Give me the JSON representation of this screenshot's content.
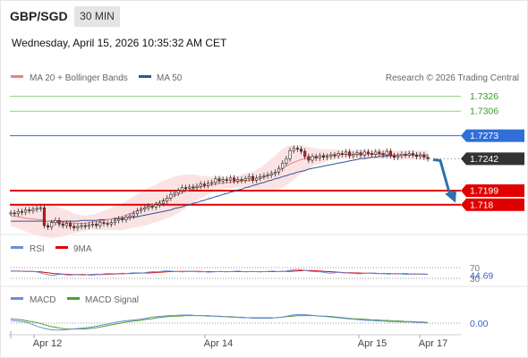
{
  "header": {
    "symbol": "GBP/SGD",
    "timeframe": "30 MIN",
    "datetime": "Wednesday, April 15, 2026 10:35:32 AM CET"
  },
  "legend": {
    "ma20": "MA 20 + Bollinger Bands",
    "ma50": "MA 50",
    "copyright": "Research © 2026 Trading Central"
  },
  "colors": {
    "ma20": "#f08080",
    "ma50": "#2f5597",
    "resistance": "#8fd17a",
    "pivot": "#2f6fd6",
    "support": "#e00000",
    "bull": "#2e9c3a",
    "bear": "#d62020",
    "rsi": "#6a8fd8",
    "rsi_ma": "#e00000",
    "macd": "#6a8fd8",
    "macd_signal": "#4aa02c"
  },
  "chart_data": [
    {
      "type": "candlestick",
      "title": "GBP/SGD",
      "ylim": [
        1.714,
        1.734
      ],
      "x_ticks": [
        "Apr 12",
        "Apr 14",
        "Apr 15",
        "Apr 17"
      ],
      "levels": [
        {
          "value": 1.7326,
          "label": "1.7326",
          "kind": "resistance"
        },
        {
          "value": 1.7306,
          "label": "1.7306",
          "kind": "resistance"
        },
        {
          "value": 1.7273,
          "label": "1.7273",
          "kind": "pivot"
        },
        {
          "value": 1.7242,
          "label": "1.7242",
          "kind": "last"
        },
        {
          "value": 1.7199,
          "label": "1.7199",
          "kind": "support"
        },
        {
          "value": 1.718,
          "label": "1.718",
          "kind": "support"
        }
      ],
      "closes": [
        1.7169,
        1.7168,
        1.7171,
        1.717,
        1.7173,
        1.7172,
        1.7174,
        1.7175,
        1.7176,
        1.7152,
        1.715,
        1.7156,
        1.7159,
        1.7154,
        1.7152,
        1.7155,
        1.7151,
        1.7149,
        1.7151,
        1.7152,
        1.7151,
        1.7153,
        1.7154,
        1.7152,
        1.7156,
        1.7155,
        1.7154,
        1.7156,
        1.7159,
        1.7161,
        1.716,
        1.7163,
        1.7165,
        1.7168,
        1.7172,
        1.7174,
        1.7176,
        1.7178,
        1.7177,
        1.718,
        1.7182,
        1.7185,
        1.7189,
        1.7194,
        1.7196,
        1.7199,
        1.7203,
        1.7202,
        1.7204,
        1.7203,
        1.7205,
        1.7208,
        1.7206,
        1.7209,
        1.721,
        1.7215,
        1.7212,
        1.7214,
        1.7213,
        1.7216,
        1.7212,
        1.7214,
        1.7213,
        1.7215,
        1.7218,
        1.7213,
        1.7216,
        1.7218,
        1.7219,
        1.722,
        1.7222,
        1.7224,
        1.7229,
        1.7236,
        1.7242,
        1.7253,
        1.7256,
        1.7255,
        1.7252,
        1.7245,
        1.724,
        1.7245,
        1.7243,
        1.7246,
        1.7244,
        1.7245,
        1.7247,
        1.7246,
        1.7249,
        1.7248,
        1.7251,
        1.7246,
        1.7248,
        1.725,
        1.7247,
        1.7251,
        1.7249,
        1.7248,
        1.7251,
        1.7249,
        1.7247,
        1.7252,
        1.7246,
        1.7244,
        1.7246,
        1.7248,
        1.7247,
        1.7249,
        1.7247,
        1.7245,
        1.7247,
        1.7244,
        1.7242
      ],
      "ma20": [
        1.7165,
        1.7165,
        1.7164,
        1.7163,
        1.7162,
        1.7161,
        1.7161,
        1.716,
        1.716,
        1.7159,
        1.7158,
        1.7157,
        1.7157,
        1.7156,
        1.7156,
        1.7156,
        1.7156,
        1.7155,
        1.7155,
        1.7155,
        1.7155,
        1.7156,
        1.7157,
        1.7157,
        1.7158,
        1.7159,
        1.716,
        1.7161,
        1.7162,
        1.7163,
        1.7164,
        1.7166,
        1.7168,
        1.717,
        1.7172,
        1.7174,
        1.7176,
        1.7178,
        1.718,
        1.7182,
        1.7184,
        1.7186,
        1.7188,
        1.719,
        1.7192,
        1.7194,
        1.7196,
        1.7198,
        1.72,
        1.7202,
        1.7203,
        1.7204,
        1.7205,
        1.7206,
        1.7207,
        1.7208,
        1.7209,
        1.7209,
        1.721,
        1.721,
        1.7211,
        1.7211,
        1.7212,
        1.7212,
        1.7213,
        1.7213,
        1.7214,
        1.7215,
        1.7217,
        1.7219,
        1.7221,
        1.7223,
        1.7226,
        1.7229,
        1.7232,
        1.7235,
        1.7237,
        1.7239,
        1.7241,
        1.7242,
        1.7243,
        1.7244,
        1.7245,
        1.7245,
        1.7246,
        1.7247,
        1.7247,
        1.7248,
        1.7248,
        1.7248,
        1.7248,
        1.7248,
        1.7248,
        1.7248,
        1.7248,
        1.7248,
        1.7248,
        1.7248,
        1.7248,
        1.7248,
        1.7248,
        1.7248,
        1.7248,
        1.7247,
        1.7247,
        1.7247,
        1.7247,
        1.7247,
        1.7247,
        1.7247,
        1.7247,
        1.7247,
        1.7247
      ],
      "ma50": [
        1.7158,
        1.7158,
        1.7158,
        1.7158,
        1.7158,
        1.7158,
        1.7158,
        1.7158,
        1.7158,
        1.7158,
        1.7158,
        1.7158,
        1.7158,
        1.7158,
        1.7158,
        1.7158,
        1.7158,
        1.7158,
        1.7158,
        1.7159,
        1.7159,
        1.7159,
        1.7159,
        1.7159,
        1.716,
        1.716,
        1.716,
        1.7161,
        1.7161,
        1.7161,
        1.7162,
        1.7162,
        1.7163,
        1.7163,
        1.7164,
        1.7165,
        1.7166,
        1.7167,
        1.7168,
        1.7169,
        1.717,
        1.7171,
        1.7172,
        1.7173,
        1.7175,
        1.7176,
        1.7177,
        1.7179,
        1.718,
        1.7182,
        1.7183,
        1.7185,
        1.7186,
        1.7188,
        1.7189,
        1.7191,
        1.7192,
        1.7194,
        1.7195,
        1.7197,
        1.7198,
        1.72,
        1.7201,
        1.7203,
        1.7204,
        1.7206,
        1.7207,
        1.7209,
        1.721,
        1.7212,
        1.7213,
        1.7215,
        1.7216,
        1.7218,
        1.7219,
        1.7221,
        1.7222,
        1.7224,
        1.7225,
        1.7226,
        1.7228,
        1.7229,
        1.723,
        1.7231,
        1.7232,
        1.7233,
        1.7234,
        1.7235,
        1.7236,
        1.7237,
        1.7238,
        1.7239,
        1.724,
        1.7241,
        1.7242,
        1.7242,
        1.7243,
        1.7244,
        1.7244,
        1.7245,
        1.7245,
        1.7246,
        1.7246,
        1.7246,
        1.7247,
        1.7247,
        1.7247,
        1.7247,
        1.7247,
        1.7247,
        1.7247,
        1.7247,
        1.7247
      ],
      "bb_width": [
        0.0014,
        0.0015,
        0.0016,
        0.0017,
        0.0018,
        0.0019,
        0.002,
        0.0021,
        0.0022,
        0.0022,
        0.0022,
        0.0022,
        0.0021,
        0.002,
        0.0019,
        0.0017,
        0.0015,
        0.0013,
        0.0012,
        0.0011,
        0.001,
        0.001,
        0.001,
        0.0011,
        0.0012,
        0.0013,
        0.0014,
        0.0015,
        0.0016,
        0.0017,
        0.0018,
        0.0019,
        0.002,
        0.0021,
        0.0022,
        0.0023,
        0.0024,
        0.0025,
        0.0025,
        0.0025,
        0.0026,
        0.0026,
        0.0026,
        0.0026,
        0.0026,
        0.0025,
        0.0024,
        0.0023,
        0.0021,
        0.0019,
        0.0017,
        0.0015,
        0.0014,
        0.0012,
        0.0011,
        0.001,
        0.0009,
        0.0009,
        0.0008,
        0.0008,
        0.0008,
        0.0008,
        0.0009,
        0.001,
        0.0011,
        0.0012,
        0.0013,
        0.0015,
        0.0017,
        0.0019,
        0.0021,
        0.0023,
        0.0025,
        0.0026,
        0.0026,
        0.0025,
        0.0023,
        0.0021,
        0.0019,
        0.0017,
        0.0015,
        0.0013,
        0.0011,
        0.001,
        0.0009,
        0.0008,
        0.0007,
        0.0007,
        0.0006,
        0.0006,
        0.0006,
        0.0006,
        0.0006,
        0.0006,
        0.0006,
        0.0006,
        0.0006,
        0.0006,
        0.0006,
        0.0006,
        0.0006,
        0.0006,
        0.0006,
        0.0006,
        0.0006,
        0.0006,
        0.0006,
        0.0006,
        0.0006,
        0.0006,
        0.0006,
        0.0006,
        0.0006
      ],
      "forecast": [
        1.7242,
        1.719
      ]
    },
    {
      "type": "line",
      "legend": [
        "RSI",
        "9MA"
      ],
      "levels": [
        {
          "value": 70,
          "label": "70"
        },
        {
          "value": 30,
          "label": "30"
        }
      ],
      "current_label": "44.69",
      "rsi": [
        58,
        57,
        56,
        57,
        55,
        56,
        54,
        50,
        46,
        42,
        41,
        44,
        45,
        43,
        42,
        44,
        43,
        42,
        44,
        45,
        46,
        45,
        47,
        48,
        47,
        48,
        49,
        48,
        50,
        51,
        50,
        51,
        53,
        55,
        54,
        56,
        58,
        57,
        56,
        55,
        54,
        56,
        57,
        55,
        54,
        55,
        53,
        54,
        55,
        56,
        54,
        55,
        56,
        57,
        55,
        54,
        56,
        55,
        54,
        55,
        56,
        57,
        55,
        56,
        57,
        60,
        62,
        63,
        61,
        58,
        56,
        55,
        54,
        52,
        49,
        50,
        52,
        51,
        50,
        49,
        48,
        47,
        48,
        49,
        50,
        49,
        48,
        47,
        46,
        47,
        48,
        46,
        45,
        46,
        47,
        46,
        45,
        44.69
      ],
      "rsi_ma": [
        57,
        57,
        57,
        56,
        56,
        56,
        55,
        54,
        52,
        50,
        48,
        47,
        46,
        45,
        44,
        44,
        44,
        44,
        43,
        43,
        44,
        44,
        45,
        46,
        46,
        47,
        47,
        48,
        48,
        49,
        49,
        50,
        50,
        51,
        52,
        53,
        54,
        55,
        55,
        56,
        56,
        56,
        56,
        56,
        56,
        55,
        55,
        55,
        55,
        55,
        55,
        55,
        55,
        55,
        55,
        55,
        55,
        55,
        55,
        55,
        55,
        55,
        55,
        56,
        56,
        56,
        57,
        58,
        59,
        59,
        59,
        58,
        57,
        56,
        55,
        54,
        53,
        52,
        51,
        51,
        50,
        50,
        49,
        49,
        49,
        48,
        48,
        48,
        48,
        47,
        47,
        47,
        47,
        46,
        46,
        46,
        46,
        45.5
      ]
    },
    {
      "type": "line",
      "legend": [
        "MACD",
        "MACD Signal"
      ],
      "current_label": "0.00",
      "macd": [
        0.5,
        0.4,
        0.3,
        0.1,
        -0.3,
        -0.7,
        -1.0,
        -1.2,
        -1.3,
        -1.3,
        -1.2,
        -1.1,
        -1.0,
        -0.9,
        -0.8,
        -0.6,
        -0.4,
        -0.2,
        0.0,
        0.2,
        0.4,
        0.5,
        0.6,
        0.7,
        0.9,
        1.1,
        1.2,
        1.3,
        1.4,
        1.4,
        1.5,
        1.5,
        1.5,
        1.4,
        1.4,
        1.3,
        1.3,
        1.2,
        1.2,
        1.1,
        1.1,
        1.0,
        1.0,
        0.9,
        0.9,
        0.9,
        0.9,
        1.0,
        1.1,
        1.3,
        1.5,
        1.6,
        1.6,
        1.5,
        1.4,
        1.3,
        1.2,
        1.1,
        1.0,
        0.9,
        0.8,
        0.7,
        0.6,
        0.5,
        0.5,
        0.4,
        0.4,
        0.3,
        0.3,
        0.2,
        0.2,
        0.2,
        0.1,
        0.1,
        0.0
      ],
      "signal": [
        0.8,
        0.7,
        0.6,
        0.4,
        0.2,
        0.0,
        -0.3,
        -0.6,
        -0.8,
        -1.0,
        -1.1,
        -1.1,
        -1.1,
        -1.1,
        -1.0,
        -0.9,
        -0.7,
        -0.5,
        -0.3,
        -0.1,
        0.1,
        0.3,
        0.4,
        0.5,
        0.7,
        0.8,
        1.0,
        1.1,
        1.2,
        1.3,
        1.3,
        1.4,
        1.4,
        1.4,
        1.4,
        1.4,
        1.3,
        1.3,
        1.2,
        1.2,
        1.1,
        1.1,
        1.0,
        1.0,
        1.0,
        1.0,
        1.0,
        1.0,
        1.1,
        1.2,
        1.3,
        1.4,
        1.4,
        1.4,
        1.4,
        1.3,
        1.3,
        1.2,
        1.1,
        1.0,
        0.9,
        0.8,
        0.8,
        0.7,
        0.6,
        0.6,
        0.5,
        0.5,
        0.4,
        0.4,
        0.3,
        0.3,
        0.2,
        0.2,
        0.1
      ]
    }
  ]
}
